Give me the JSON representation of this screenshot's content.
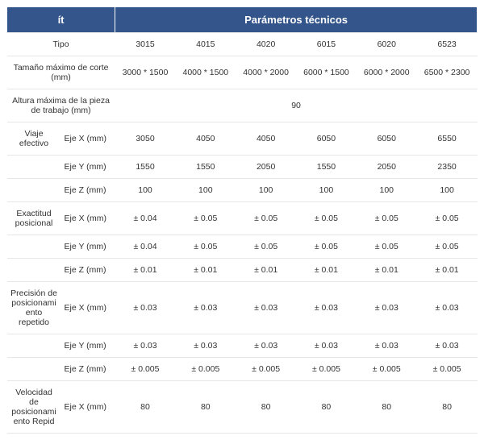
{
  "header": {
    "item": "ít",
    "params": "Parámetros técnicos"
  },
  "cols": [
    "3015",
    "4015",
    "4020",
    "6015",
    "6020",
    "6523"
  ],
  "rows": {
    "tipo_label": "Tipo",
    "tamano_label": "Tamaño máximo de corte (mm)",
    "tamano": [
      "3000 * 1500",
      "4000 * 1500",
      "4000 * 2000",
      "6000 * 1500",
      "6000 * 2000",
      "6500 * 2300"
    ],
    "altura_label": "Altura máxima de la pieza de trabajo (mm)",
    "altura_val": "90",
    "viaje_label": "Viaje efectivo",
    "ejeX": "Eje X (mm)",
    "ejeY": "Eje Y (mm)",
    "ejeZ": "Eje Z (mm)",
    "viaje_x": [
      "3050",
      "4050",
      "4050",
      "6050",
      "6050",
      "6550"
    ],
    "viaje_y": [
      "1550",
      "1550",
      "2050",
      "1550",
      "2050",
      "2350"
    ],
    "viaje_z": [
      "100",
      "100",
      "100",
      "100",
      "100",
      "100"
    ],
    "exact_label": "Exactitud posicional",
    "exact_x": [
      "± 0.04",
      "± 0.05",
      "± 0.05",
      "± 0.05",
      "± 0.05",
      "± 0.05"
    ],
    "exact_y": [
      "± 0.04",
      "± 0.05",
      "± 0.05",
      "± 0.05",
      "± 0.05",
      "± 0.05"
    ],
    "exact_z": [
      "± 0.01",
      "± 0.01",
      "± 0.01",
      "± 0.01",
      "± 0.01",
      "± 0.01"
    ],
    "prec_label": "Precisión de posicionamiento repetido",
    "prec_x": [
      "± 0.03",
      "± 0.03",
      "± 0.03",
      "± 0.03",
      "± 0.03",
      "± 0.03"
    ],
    "prec_y": [
      "± 0.03",
      "± 0.03",
      "± 0.03",
      "± 0.03",
      "± 0.03",
      "± 0.03"
    ],
    "prec_z": [
      "± 0.005",
      "± 0.005",
      "± 0.005",
      "± 0.005",
      "± 0.005",
      "± 0.005"
    ],
    "vel_label": "Velocidad de posicionamiento Repid",
    "vel_x": [
      "80",
      "80",
      "80",
      "80",
      "80",
      "80"
    ]
  },
  "style": {
    "header_bg": "#34558b",
    "header_fg": "#ffffff",
    "border_color": "#e6e6e6",
    "text_color": "#333333",
    "font_size_header": 13,
    "font_size_cell": 10.5
  }
}
